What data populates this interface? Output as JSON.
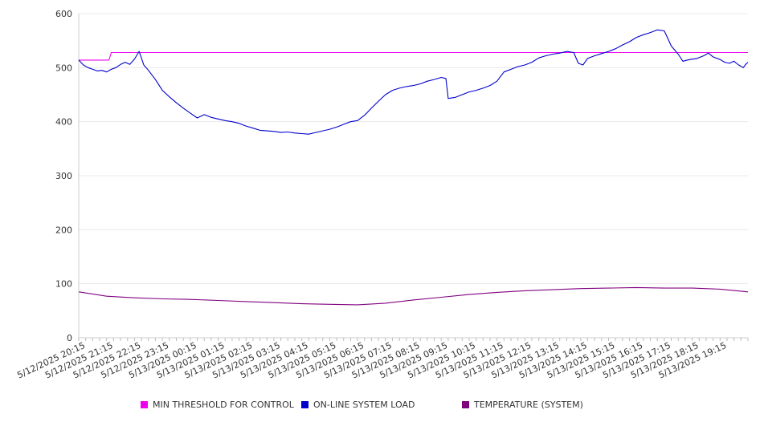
{
  "chart_data": {
    "type": "line",
    "title": "",
    "xlabel": "",
    "ylabel": "",
    "ylim": [
      0,
      600
    ],
    "yticks": [
      "0",
      "100",
      "200",
      "300",
      "400",
      "500",
      "600"
    ],
    "grid": "horizontal",
    "legend_placement": "bottom",
    "x_start": "5/12/2025 20:00",
    "x_end": "5/13/2025 20:00",
    "x_tick_labels": [
      "5/12/2025 20:15",
      "5/12/2025 21:15",
      "5/12/2025 22:15",
      "5/12/2025 23:15",
      "5/13/2025 00:15",
      "5/13/2025 01:15",
      "5/13/2025 02:15",
      "5/13/2025 03:15",
      "5/13/2025 04:15",
      "5/13/2025 05:15",
      "5/13/2025 06:15",
      "5/13/2025 07:15",
      "5/13/2025 08:15",
      "5/13/2025 09:15",
      "5/13/2025 10:15",
      "5/13/2025 11:15",
      "5/13/2025 12:15",
      "5/13/2025 13:15",
      "5/13/2025 14:15",
      "5/13/2025 15:15",
      "5/13/2025 16:15",
      "5/13/2025 17:15",
      "5/13/2025 18:15",
      "5/13/2025 19:15"
    ],
    "series": [
      {
        "name": "MIN THRESHOLD FOR CONTROL",
        "color": "#ee00ee",
        "points": [
          [
            "5/12/2025 20:00",
            514
          ],
          [
            "5/12/2025 21:05",
            514
          ],
          [
            "5/12/2025 21:10",
            528
          ],
          [
            "5/13/2025 20:00",
            528
          ]
        ]
      },
      {
        "name": "ON-LINE SYSTEM LOAD",
        "color": "#0000cc",
        "points": [
          [
            "5/12/2025 20:00",
            514
          ],
          [
            "5/12/2025 20:10",
            505
          ],
          [
            "5/12/2025 20:20",
            500
          ],
          [
            "5/12/2025 20:30",
            497
          ],
          [
            "5/12/2025 20:40",
            494
          ],
          [
            "5/12/2025 20:50",
            495
          ],
          [
            "5/12/2025 21:00",
            492
          ],
          [
            "5/12/2025 21:10",
            497
          ],
          [
            "5/12/2025 21:20",
            500
          ],
          [
            "5/12/2025 21:30",
            506
          ],
          [
            "5/12/2025 21:40",
            510
          ],
          [
            "5/12/2025 21:50",
            506
          ],
          [
            "5/12/2025 22:00",
            516
          ],
          [
            "5/12/2025 22:10",
            530
          ],
          [
            "5/12/2025 22:20",
            505
          ],
          [
            "5/12/2025 22:30",
            495
          ],
          [
            "5/12/2025 22:45",
            478
          ],
          [
            "5/12/2025 23:00",
            458
          ],
          [
            "5/12/2025 23:15",
            446
          ],
          [
            "5/12/2025 23:30",
            435
          ],
          [
            "5/12/2025 23:45",
            425
          ],
          [
            "5/13/2025 00:00",
            416
          ],
          [
            "5/13/2025 00:15",
            407
          ],
          [
            "5/13/2025 00:30",
            413
          ],
          [
            "5/13/2025 00:45",
            408
          ],
          [
            "5/13/2025 01:00",
            405
          ],
          [
            "5/13/2025 01:15",
            402
          ],
          [
            "5/13/2025 01:30",
            400
          ],
          [
            "5/13/2025 01:45",
            397
          ],
          [
            "5/13/2025 02:00",
            392
          ],
          [
            "5/13/2025 02:15",
            388
          ],
          [
            "5/13/2025 02:30",
            384
          ],
          [
            "5/13/2025 02:45",
            383
          ],
          [
            "5/13/2025 03:00",
            382
          ],
          [
            "5/13/2025 03:15",
            380
          ],
          [
            "5/13/2025 03:30",
            381
          ],
          [
            "5/13/2025 03:45",
            379
          ],
          [
            "5/13/2025 04:00",
            378
          ],
          [
            "5/13/2025 04:15",
            377
          ],
          [
            "5/13/2025 04:30",
            380
          ],
          [
            "5/13/2025 04:45",
            383
          ],
          [
            "5/13/2025 05:00",
            386
          ],
          [
            "5/13/2025 05:15",
            390
          ],
          [
            "5/13/2025 05:30",
            395
          ],
          [
            "5/13/2025 05:45",
            400
          ],
          [
            "5/13/2025 06:00",
            402
          ],
          [
            "5/13/2025 06:15",
            412
          ],
          [
            "5/13/2025 06:30",
            425
          ],
          [
            "5/13/2025 06:45",
            438
          ],
          [
            "5/13/2025 07:00",
            450
          ],
          [
            "5/13/2025 07:15",
            458
          ],
          [
            "5/13/2025 07:30",
            462
          ],
          [
            "5/13/2025 07:45",
            465
          ],
          [
            "5/13/2025 08:00",
            467
          ],
          [
            "5/13/2025 08:15",
            470
          ],
          [
            "5/13/2025 08:30",
            475
          ],
          [
            "5/13/2025 08:45",
            478
          ],
          [
            "5/13/2025 09:00",
            482
          ],
          [
            "5/13/2025 09:10",
            480
          ],
          [
            "5/13/2025 09:15",
            443
          ],
          [
            "5/13/2025 09:30",
            445
          ],
          [
            "5/13/2025 09:45",
            450
          ],
          [
            "5/13/2025 10:00",
            455
          ],
          [
            "5/13/2025 10:15",
            458
          ],
          [
            "5/13/2025 10:30",
            462
          ],
          [
            "5/13/2025 10:45",
            467
          ],
          [
            "5/13/2025 11:00",
            475
          ],
          [
            "5/13/2025 11:15",
            492
          ],
          [
            "5/13/2025 11:30",
            497
          ],
          [
            "5/13/2025 11:45",
            502
          ],
          [
            "5/13/2025 12:00",
            505
          ],
          [
            "5/13/2025 12:15",
            510
          ],
          [
            "5/13/2025 12:30",
            518
          ],
          [
            "5/13/2025 12:45",
            522
          ],
          [
            "5/13/2025 13:00",
            525
          ],
          [
            "5/13/2025 13:15",
            527
          ],
          [
            "5/13/2025 13:30",
            530
          ],
          [
            "5/13/2025 13:45",
            528
          ],
          [
            "5/13/2025 13:55",
            508
          ],
          [
            "5/13/2025 14:05",
            505
          ],
          [
            "5/13/2025 14:15",
            517
          ],
          [
            "5/13/2025 14:30",
            522
          ],
          [
            "5/13/2025 14:45",
            526
          ],
          [
            "5/13/2025 15:00",
            530
          ],
          [
            "5/13/2025 15:15",
            535
          ],
          [
            "5/13/2025 15:30",
            542
          ],
          [
            "5/13/2025 15:45",
            548
          ],
          [
            "5/13/2025 16:00",
            556
          ],
          [
            "5/13/2025 16:15",
            561
          ],
          [
            "5/13/2025 16:30",
            565
          ],
          [
            "5/13/2025 16:45",
            570
          ],
          [
            "5/13/2025 17:00",
            568
          ],
          [
            "5/13/2025 17:15",
            540
          ],
          [
            "5/13/2025 17:30",
            525
          ],
          [
            "5/13/2025 17:40",
            512
          ],
          [
            "5/13/2025 17:55",
            515
          ],
          [
            "5/13/2025 18:10",
            517
          ],
          [
            "5/13/2025 18:25",
            522
          ],
          [
            "5/13/2025 18:35",
            527
          ],
          [
            "5/13/2025 18:45",
            520
          ],
          [
            "5/13/2025 19:00",
            515
          ],
          [
            "5/13/2025 19:10",
            510
          ],
          [
            "5/13/2025 19:20",
            508
          ],
          [
            "5/13/2025 19:30",
            512
          ],
          [
            "5/13/2025 19:40",
            505
          ],
          [
            "5/13/2025 19:50",
            500
          ],
          [
            "5/13/2025 19:55",
            506
          ],
          [
            "5/13/2025 20:00",
            510
          ]
        ]
      },
      {
        "name": "TEMPERATURE (SYSTEM)",
        "color": "#800080",
        "points": [
          [
            "5/12/2025 20:00",
            85
          ],
          [
            "5/12/2025 21:00",
            77
          ],
          [
            "5/12/2025 22:00",
            74
          ],
          [
            "5/12/2025 23:00",
            72
          ],
          [
            "5/13/2025 00:00",
            71
          ],
          [
            "5/13/2025 01:00",
            69
          ],
          [
            "5/13/2025 02:00",
            67
          ],
          [
            "5/13/2025 03:00",
            65
          ],
          [
            "5/13/2025 04:00",
            63
          ],
          [
            "5/13/2025 05:00",
            62
          ],
          [
            "5/13/2025 06:00",
            61
          ],
          [
            "5/13/2025 07:00",
            64
          ],
          [
            "5/13/2025 08:00",
            70
          ],
          [
            "5/13/2025 09:00",
            75
          ],
          [
            "5/13/2025 10:00",
            80
          ],
          [
            "5/13/2025 11:00",
            84
          ],
          [
            "5/13/2025 12:00",
            87
          ],
          [
            "5/13/2025 13:00",
            89
          ],
          [
            "5/13/2025 14:00",
            91
          ],
          [
            "5/13/2025 15:00",
            92
          ],
          [
            "5/13/2025 16:00",
            93
          ],
          [
            "5/13/2025 17:00",
            92
          ],
          [
            "5/13/2025 18:00",
            92
          ],
          [
            "5/13/2025 19:00",
            90
          ],
          [
            "5/13/2025 20:00",
            85
          ]
        ]
      }
    ]
  }
}
